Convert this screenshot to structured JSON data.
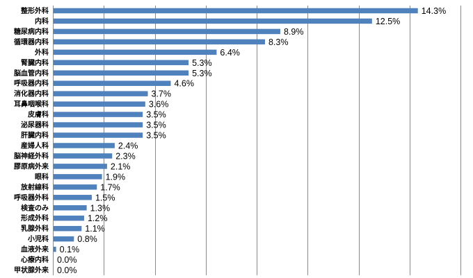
{
  "chart_data": {
    "type": "bar",
    "orientation": "horizontal",
    "title": "",
    "xlabel": "",
    "ylabel": "",
    "xlim": [
      0,
      16
    ],
    "grid": true,
    "legend": "none",
    "bar_color": "#4f81bd",
    "value_suffix": "%",
    "categories": [
      "整形外科",
      "内科",
      "糖尿病内科",
      "循環器内科",
      "外科",
      "腎臓内科",
      "脳血管内科",
      "呼吸器内科",
      "消化器内科",
      "耳鼻咽喉科",
      "皮膚科",
      "泌尿器科",
      "肝臓内科",
      "産婦人科",
      "脳神経外科",
      "膠原病外来",
      "眼科",
      "放射線科",
      "呼吸器外科",
      "検査のみ",
      "形成外科",
      "乳腺外科",
      "小児科",
      "血液外来",
      "心療内科",
      "甲状腺外来"
    ],
    "values": [
      14.3,
      12.5,
      8.9,
      8.3,
      6.4,
      5.3,
      5.3,
      4.6,
      3.7,
      3.6,
      3.5,
      3.5,
      3.5,
      2.4,
      2.3,
      2.1,
      1.9,
      1.7,
      1.5,
      1.3,
      1.2,
      1.1,
      0.8,
      0.1,
      0.0,
      0.0
    ],
    "value_labels": [
      "14.3%",
      "12.5%",
      "8.9%",
      "8.3%",
      "6.4%",
      "5.3%",
      "5.3%",
      "4.6%",
      "3.7%",
      "3.6%",
      "3.5%",
      "3.5%",
      "3.5%",
      "2.4%",
      "2.3%",
      "2.1%",
      "1.9%",
      "1.7%",
      "1.5%",
      "1.3%",
      "1.2%",
      "1.1%",
      "0.8%",
      "0.1%",
      "0.0%",
      "0.0%"
    ]
  }
}
